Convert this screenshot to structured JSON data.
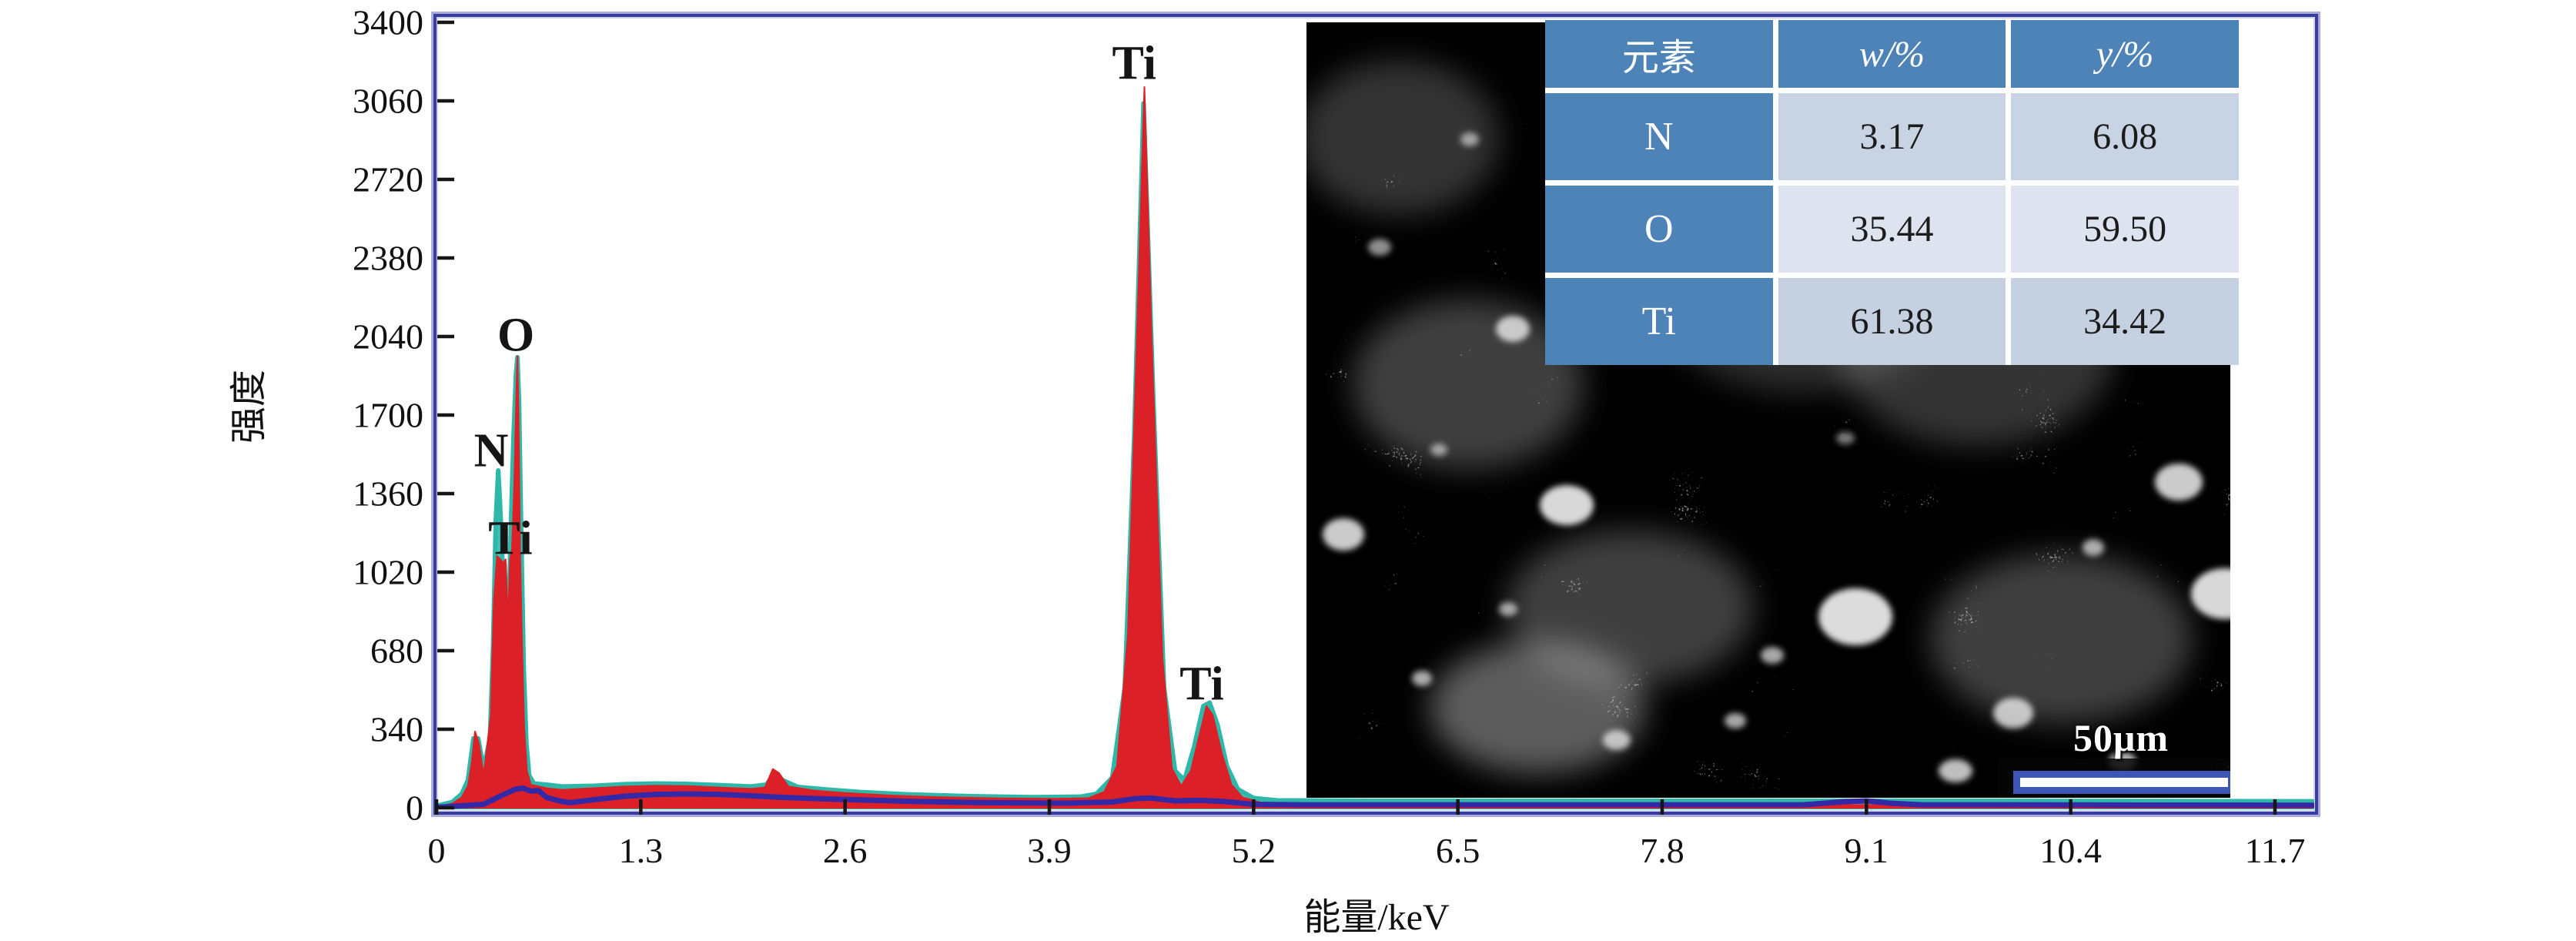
{
  "figure": {
    "description": "EDS energy spectrum with SEM inset image and elemental composition table"
  },
  "chart_data": {
    "type": "area",
    "title": "",
    "xlabel": "能量/keV",
    "ylabel": "强度",
    "xlim": [
      0,
      11.95
    ],
    "ylim": [
      0,
      3400
    ],
    "x_ticks": [
      0,
      1.3,
      2.6,
      3.9,
      5.2,
      6.5,
      7.8,
      9.1,
      10.4,
      11.7
    ],
    "y_ticks": [
      0,
      340,
      680,
      1020,
      1360,
      1700,
      2040,
      2380,
      2720,
      3060,
      3400
    ],
    "grid": false,
    "legend": null,
    "annotations": [
      {
        "text": "N",
        "x_keV": 0.348,
        "y_counts": 1545
      },
      {
        "text": "O",
        "x_keV": 0.505,
        "y_counts": 2045
      },
      {
        "text": "Ti",
        "x_keV": 0.47,
        "y_counts": 1165
      },
      {
        "text": "Ti",
        "x_keV": 4.44,
        "y_counts": 3220
      },
      {
        "text": "Ti",
        "x_keV": 4.87,
        "y_counts": 535
      }
    ],
    "series": [
      {
        "name": "fit-envelope-teal",
        "color": "#45c4b6",
        "stroke": "#2fb8a9",
        "style": "filled-area",
        "points": [
          [
            0,
            8
          ],
          [
            0.1,
            25
          ],
          [
            0.16,
            60
          ],
          [
            0.2,
            120
          ],
          [
            0.235,
            300
          ],
          [
            0.265,
            300
          ],
          [
            0.3,
            170
          ],
          [
            0.34,
            300
          ],
          [
            0.36,
            700
          ],
          [
            0.378,
            1250
          ],
          [
            0.393,
            1460
          ],
          [
            0.405,
            1300
          ],
          [
            0.42,
            1060
          ],
          [
            0.432,
            1060
          ],
          [
            0.442,
            900
          ],
          [
            0.452,
            680
          ],
          [
            0.462,
            900
          ],
          [
            0.475,
            1250
          ],
          [
            0.49,
            1600
          ],
          [
            0.505,
            1870
          ],
          [
            0.515,
            1950
          ],
          [
            0.525,
            1750
          ],
          [
            0.54,
            1150
          ],
          [
            0.555,
            600
          ],
          [
            0.572,
            280
          ],
          [
            0.59,
            140
          ],
          [
            0.62,
            105
          ],
          [
            0.7,
            100
          ],
          [
            0.8,
            92
          ],
          [
            1.0,
            95
          ],
          [
            1.2,
            102
          ],
          [
            1.4,
            105
          ],
          [
            1.6,
            103
          ],
          [
            1.8,
            98
          ],
          [
            2.0,
            92
          ],
          [
            2.1,
            100
          ],
          [
            2.15,
            150
          ],
          [
            2.2,
            120
          ],
          [
            2.3,
            90
          ],
          [
            2.5,
            78
          ],
          [
            2.7,
            68
          ],
          [
            3.0,
            58
          ],
          [
            3.4,
            50
          ],
          [
            3.8,
            46
          ],
          [
            4.1,
            48
          ],
          [
            4.2,
            60
          ],
          [
            4.3,
            130
          ],
          [
            4.38,
            520
          ],
          [
            4.44,
            1600
          ],
          [
            4.5,
            3050
          ],
          [
            4.56,
            1800
          ],
          [
            4.63,
            520
          ],
          [
            4.7,
            160
          ],
          [
            4.76,
            120
          ],
          [
            4.82,
            260
          ],
          [
            4.88,
            440
          ],
          [
            4.92,
            455
          ],
          [
            4.97,
            360
          ],
          [
            5.03,
            180
          ],
          [
            5.1,
            80
          ],
          [
            5.2,
            42
          ],
          [
            5.35,
            32
          ],
          [
            6,
            30
          ],
          [
            8,
            30
          ],
          [
            10,
            30
          ],
          [
            11.94,
            28
          ]
        ]
      },
      {
        "name": "measured-spectrum-red",
        "color": "#db2127",
        "stroke": "#db2127",
        "style": "filled-area",
        "points": [
          [
            0,
            4
          ],
          [
            0.1,
            18
          ],
          [
            0.16,
            45
          ],
          [
            0.2,
            95
          ],
          [
            0.225,
            200
          ],
          [
            0.245,
            330
          ],
          [
            0.27,
            280
          ],
          [
            0.3,
            140
          ],
          [
            0.345,
            400
          ],
          [
            0.365,
            900
          ],
          [
            0.385,
            1090
          ],
          [
            0.4,
            1080
          ],
          [
            0.425,
            1060
          ],
          [
            0.44,
            1075
          ],
          [
            0.45,
            900
          ],
          [
            0.458,
            870
          ],
          [
            0.468,
            1075
          ],
          [
            0.48,
            1120
          ],
          [
            0.495,
            1400
          ],
          [
            0.508,
            1800
          ],
          [
            0.515,
            1955
          ],
          [
            0.522,
            1700
          ],
          [
            0.532,
            1100
          ],
          [
            0.545,
            700
          ],
          [
            0.558,
            350
          ],
          [
            0.575,
            160
          ],
          [
            0.6,
            100
          ],
          [
            0.7,
            85
          ],
          [
            0.8,
            78
          ],
          [
            1.0,
            85
          ],
          [
            1.2,
            92
          ],
          [
            1.4,
            96
          ],
          [
            1.6,
            94
          ],
          [
            1.8,
            88
          ],
          [
            2.0,
            82
          ],
          [
            2.09,
            88
          ],
          [
            2.14,
            168
          ],
          [
            2.18,
            150
          ],
          [
            2.24,
            92
          ],
          [
            2.4,
            75
          ],
          [
            2.6,
            64
          ],
          [
            2.9,
            53
          ],
          [
            3.2,
            46
          ],
          [
            3.6,
            41
          ],
          [
            3.95,
            39
          ],
          [
            4.15,
            42
          ],
          [
            4.25,
            70
          ],
          [
            4.33,
            180
          ],
          [
            4.4,
            750
          ],
          [
            4.46,
            2100
          ],
          [
            4.505,
            3120
          ],
          [
            4.55,
            2050
          ],
          [
            4.62,
            650
          ],
          [
            4.68,
            170
          ],
          [
            4.74,
            95
          ],
          [
            4.8,
            160
          ],
          [
            4.85,
            300
          ],
          [
            4.9,
            440
          ],
          [
            4.94,
            400
          ],
          [
            5.0,
            230
          ],
          [
            5.06,
            100
          ],
          [
            5.13,
            45
          ],
          [
            5.25,
            22
          ],
          [
            5.5,
            14
          ],
          [
            6.5,
            12
          ],
          [
            8,
            12
          ],
          [
            10,
            12
          ],
          [
            11.94,
            10
          ]
        ]
      },
      {
        "name": "background-baseline-indigo",
        "color": "none",
        "stroke": "#3328a6",
        "style": "line",
        "points": [
          [
            0,
            2
          ],
          [
            0.3,
            15
          ],
          [
            0.42,
            55
          ],
          [
            0.5,
            80
          ],
          [
            0.55,
            85
          ],
          [
            0.6,
            72
          ],
          [
            0.65,
            74
          ],
          [
            0.7,
            45
          ],
          [
            0.78,
            30
          ],
          [
            0.85,
            22
          ],
          [
            1.0,
            35
          ],
          [
            1.2,
            50
          ],
          [
            1.4,
            58
          ],
          [
            1.6,
            60
          ],
          [
            1.8,
            58
          ],
          [
            2.0,
            52
          ],
          [
            2.2,
            45
          ],
          [
            2.5,
            38
          ],
          [
            3.0,
            28
          ],
          [
            3.5,
            22
          ],
          [
            4.0,
            20
          ],
          [
            4.3,
            25
          ],
          [
            4.45,
            40
          ],
          [
            4.55,
            42
          ],
          [
            4.7,
            30
          ],
          [
            4.85,
            32
          ],
          [
            5.0,
            28
          ],
          [
            5.2,
            15
          ],
          [
            5.5,
            13
          ],
          [
            8.7,
            13
          ],
          [
            8.95,
            26
          ],
          [
            9.1,
            30
          ],
          [
            9.25,
            20
          ],
          [
            9.45,
            13
          ],
          [
            11.94,
            11
          ]
        ]
      }
    ]
  },
  "table": {
    "headers": [
      "元素",
      "w/%",
      "y/%"
    ],
    "rows": [
      {
        "element": "N",
        "w_pct": "3.17",
        "y_pct": "6.08"
      },
      {
        "element": "O",
        "w_pct": "35.44",
        "y_pct": "59.50"
      },
      {
        "element": "Ti",
        "w_pct": "61.38",
        "y_pct": "34.42"
      }
    ]
  },
  "sem_inset": {
    "scale_bar_label": "50μm"
  },
  "colors": {
    "spectrum_red": "#db2127",
    "envelope_teal": "#45c4b6",
    "baseline_indigo": "#3328a6",
    "frame_dark_blue": "#383c9d",
    "frame_light_blue": "#a9abdc",
    "table_header_blue": "#4e83b7",
    "table_row_light": "#c8d4e3",
    "table_row_lighter": "#dee3f0",
    "scalebar_blue": "#3c55b6",
    "tick_black": "#151515"
  }
}
